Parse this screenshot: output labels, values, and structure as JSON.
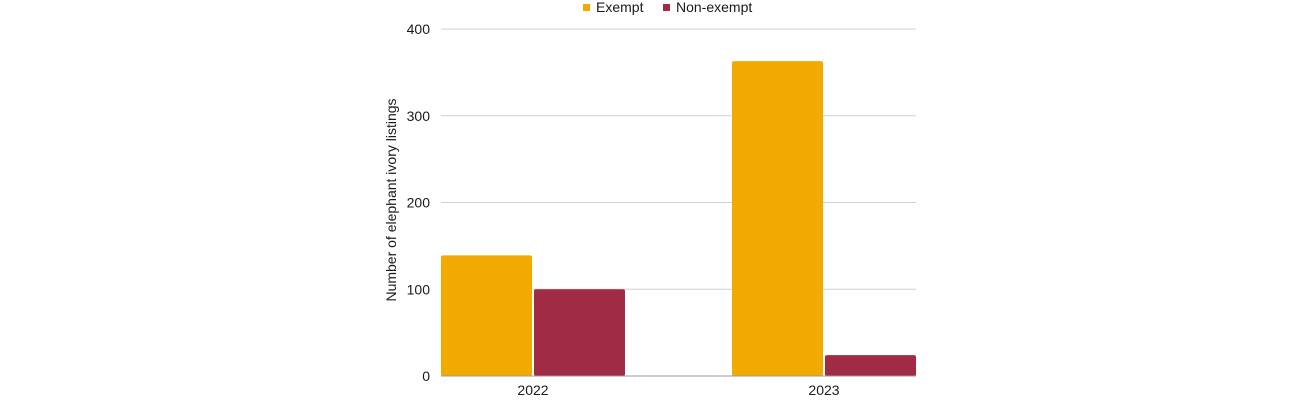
{
  "chart_data": {
    "type": "bar",
    "title": "",
    "xlabel": "",
    "ylabel": "Number of elephant ivory listings",
    "categories": [
      "2022",
      "2023"
    ],
    "series": [
      {
        "name": "Exempt",
        "color": "#F2A900",
        "values": [
          139,
          363
        ]
      },
      {
        "name": "Non-exempt",
        "color": "#A12A44",
        "values": [
          100,
          24
        ]
      }
    ],
    "ylim": [
      0,
      400
    ],
    "yticks": [
      0,
      100,
      200,
      300,
      400
    ],
    "grid": true,
    "legend_position": "top-center"
  }
}
